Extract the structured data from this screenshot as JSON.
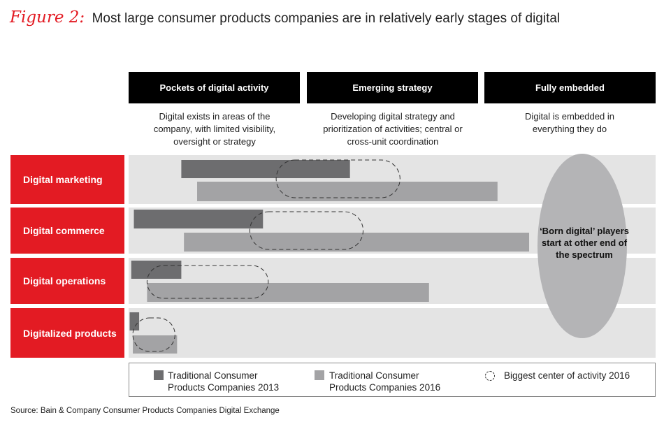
{
  "figure": {
    "label": "Figure 2:",
    "title": "Most large consumer products companies are in relatively early stages of digital"
  },
  "stages": [
    {
      "name": "Pockets of digital activity",
      "description": "Digital exists in areas of the company, with limited visibility, oversight or strategy"
    },
    {
      "name": "Emerging strategy",
      "description": "Developing digital strategy and prioritization of activities; central or cross-unit coordination"
    },
    {
      "name": "Fully embedded",
      "description": "Digital is embedded in everything they do"
    }
  ],
  "oval_annotation": "‘Born digital’ players start at other end of the spectrum",
  "legend": {
    "series_2013": "Traditional Consumer Products Companies 2013",
    "series_2016": "Traditional Consumer Products Companies 2016",
    "center": "Biggest center of activity 2016"
  },
  "source": "Source: Bain & Company Consumer Products Companies Digital Exchange",
  "colors": {
    "accent_red": "#e31b23",
    "header_black": "#000000",
    "row_background": "#e4e4e4",
    "bar_2013": "#6d6d6f",
    "bar_2016": "#a3a3a5",
    "oval": "#b4b4b6"
  },
  "chart_data": {
    "type": "range-bar",
    "x_scale": "digital maturity spectrum, 0 = start of 'Pockets of digital activity', 1 = end of 'Fully embedded'",
    "categories": [
      "Digital marketing",
      "Digital commerce",
      "Digital operations",
      "Digitalized products"
    ],
    "series": [
      {
        "name": "Traditional Consumer Products Companies 2013",
        "ranges": [
          [
            0.1,
            0.42
          ],
          [
            0.01,
            0.255
          ],
          [
            0.005,
            0.1
          ],
          [
            0.002,
            0.02
          ]
        ]
      },
      {
        "name": "Traditional Consumer Products Companies 2016",
        "ranges": [
          [
            0.13,
            0.7
          ],
          [
            0.105,
            0.76
          ],
          [
            0.035,
            0.57
          ],
          [
            0.008,
            0.092
          ]
        ]
      },
      {
        "name": "Biggest center of activity 2016",
        "ranges": [
          [
            0.28,
            0.515
          ],
          [
            0.23,
            0.445
          ],
          [
            0.035,
            0.265
          ],
          [
            0.008,
            0.088
          ]
        ]
      }
    ]
  }
}
